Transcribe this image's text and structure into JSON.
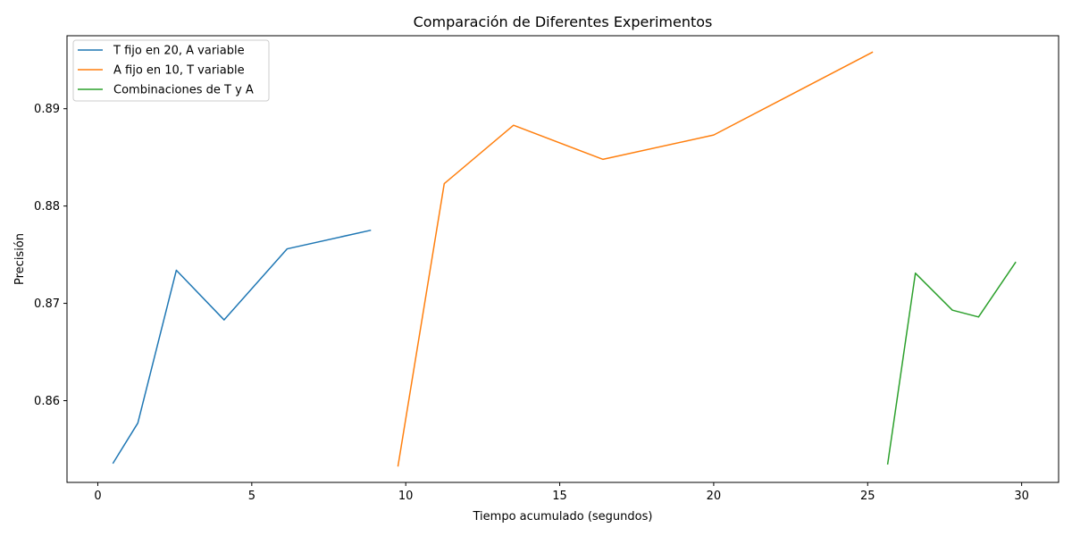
{
  "chart_data": {
    "type": "line",
    "title": "Comparación de Diferentes Experimentos",
    "xlabel": "Tiempo acumulado (segundos)",
    "ylabel": "Precisión",
    "xlim": [
      -1.0,
      31.2
    ],
    "ylim": [
      0.8516,
      0.8975
    ],
    "xticks": [
      0,
      5,
      10,
      15,
      20,
      25,
      30
    ],
    "xtick_labels": [
      "0",
      "5",
      "10",
      "15",
      "20",
      "25",
      "30"
    ],
    "yticks": [
      0.86,
      0.87,
      0.88,
      0.89
    ],
    "ytick_labels": [
      "0.86",
      "0.87",
      "0.88",
      "0.89"
    ],
    "grid": false,
    "legend_position": "top-left",
    "series": [
      {
        "name": "T fijo en 20, A variable",
        "color": "#1f77b4",
        "x": [
          0.5,
          1.3,
          2.55,
          4.1,
          6.15,
          8.85
        ],
        "y": [
          0.8536,
          0.8577,
          0.8734,
          0.8683,
          0.8756,
          0.8775
        ]
      },
      {
        "name": "A fijo en 10, T variable",
        "color": "#ff7f0e",
        "x": [
          9.75,
          11.25,
          13.5,
          16.4,
          20.0,
          25.15
        ],
        "y": [
          0.8533,
          0.8823,
          0.8883,
          0.8848,
          0.8873,
          0.8958
        ]
      },
      {
        "name": "Combinaciones de T y A",
        "color": "#2ca02c",
        "x": [
          25.65,
          26.55,
          27.75,
          28.6,
          29.8
        ],
        "y": [
          0.8535,
          0.8731,
          0.8693,
          0.8686,
          0.8742
        ]
      }
    ]
  }
}
